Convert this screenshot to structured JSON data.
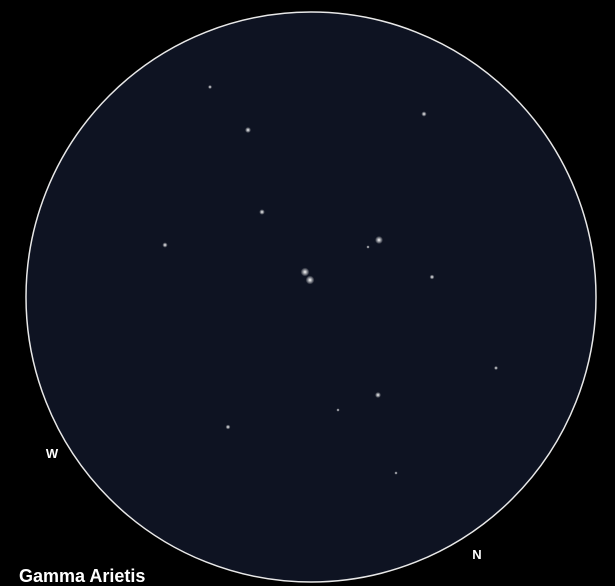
{
  "labels": {
    "west": "W",
    "north": "N",
    "title": "Gamma Arietis"
  }
}
